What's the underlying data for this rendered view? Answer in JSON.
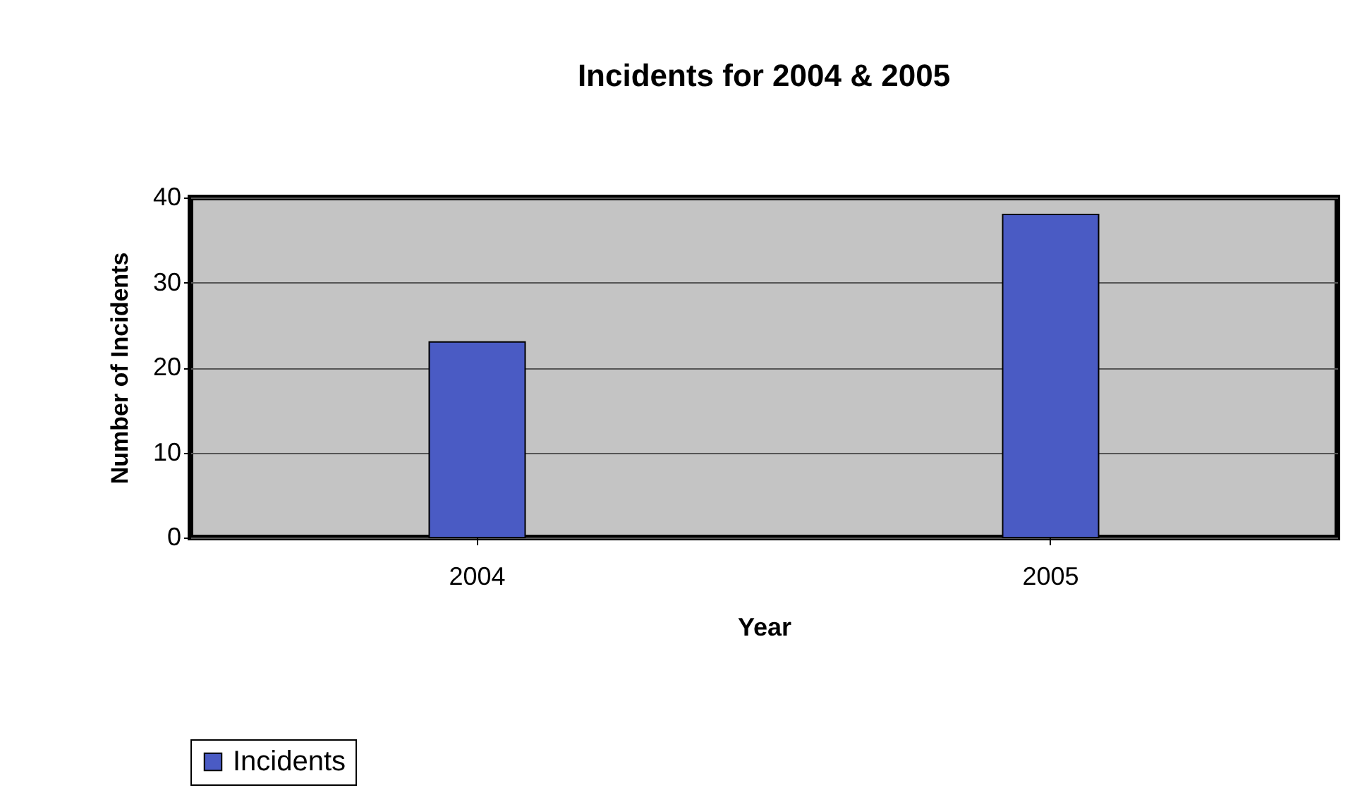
{
  "chart_data": {
    "type": "bar",
    "title": "Incidents for 2004 & 2005",
    "xlabel": "Year",
    "ylabel": "Number of Incidents",
    "categories": [
      "2004",
      "2005"
    ],
    "series": [
      {
        "name": "Incidents",
        "color": "#4a5bc4",
        "values": [
          23,
          38
        ]
      }
    ],
    "ylim": [
      0,
      40
    ],
    "yticks": [
      0,
      10,
      20,
      30,
      40
    ],
    "grid": "y",
    "legend": "bottom"
  }
}
